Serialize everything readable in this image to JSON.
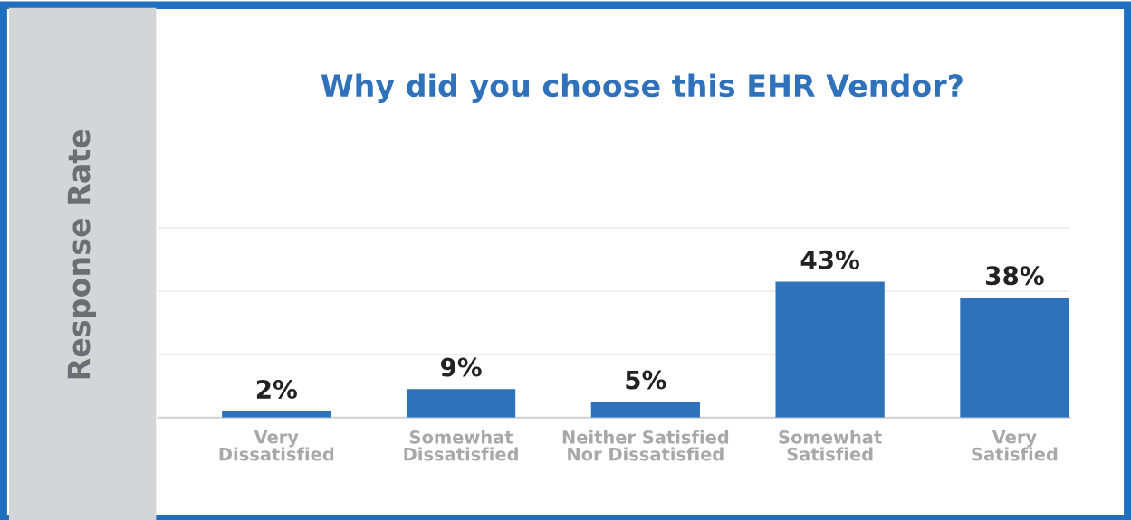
{
  "chart_data": {
    "type": "bar",
    "title": "Why did you choose this EHR Vendor?",
    "ylabel": "Response Rate",
    "categories": [
      "Very\nDissatisfied",
      "Somewhat\nDissatisfied",
      "Neither Satisfied\nNor Dissatisfied",
      "Somewhat\nSatisfied",
      "Very\nSatisfied"
    ],
    "values": [
      2,
      9,
      5,
      43,
      38
    ],
    "value_labels": [
      "2%",
      "9%",
      "5%",
      "43%",
      "38%"
    ],
    "color": "#2f72bb",
    "ylim": [
      0,
      80
    ],
    "yticks": [
      {
        "value": 0,
        "label": null
      },
      {
        "value": 20,
        "label": null
      },
      {
        "value": 40,
        "label": null
      },
      {
        "value": 60,
        "label": null
      },
      {
        "value": 80,
        "label": null
      }
    ],
    "grid": "y",
    "tick_labels": "x",
    "legend": false
  }
}
